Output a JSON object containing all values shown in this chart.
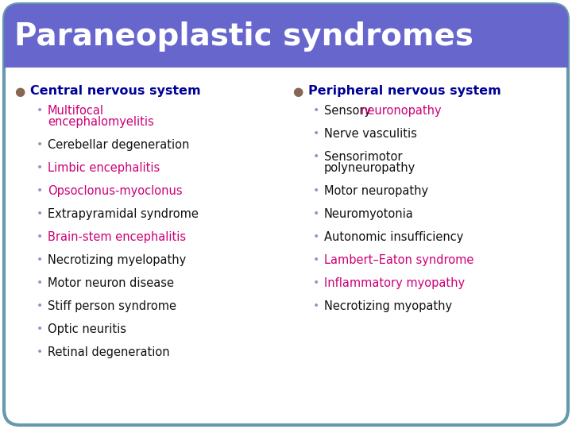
{
  "title": "Paraneoplastic syndromes",
  "title_bg": "#6666cc",
  "title_color": "#ffffff",
  "slide_bg": "#ffffff",
  "border_color": "#6699aa",
  "heading_color": "#000099",
  "bullet_color": "#8899bb",
  "heading_bullet_color": "#886655",
  "black_color": "#111111",
  "pink_color": "#cc0077",
  "left_heading": "Central nervous system",
  "left_items": [
    {
      "text": "Multifocal\nencephalomyelitis",
      "color": "pink"
    },
    {
      "text": "Cerebellar degeneration",
      "color": "black"
    },
    {
      "text": "Limbic encephalitis",
      "color": "pink"
    },
    {
      "text": "Opsoclonus-myoclonus",
      "color": "pink"
    },
    {
      "text": "Extrapyramidal syndrome",
      "color": "black"
    },
    {
      "text": "Brain-stem encephalitis",
      "color": "pink"
    },
    {
      "text": "Necrotizing myelopathy",
      "color": "black"
    },
    {
      "text": "Motor neuron disease",
      "color": "black"
    },
    {
      "text": "Stiff person syndrome",
      "color": "black"
    },
    {
      "text": "Optic neuritis",
      "color": "black"
    },
    {
      "text": "Retinal degeneration",
      "color": "black"
    }
  ],
  "right_heading": "Peripheral nervous system",
  "right_items": [
    {
      "text": "Sensory neuronopathy",
      "color": "mixed_sensory"
    },
    {
      "text": "Nerve vasculitis",
      "color": "black"
    },
    {
      "text": "Sensorimotor\npolyneuropathy",
      "color": "black"
    },
    {
      "text": "Motor neuropathy",
      "color": "black"
    },
    {
      "text": "Neuromyotonia",
      "color": "black"
    },
    {
      "text": "Autonomic insufficiency",
      "color": "black"
    },
    {
      "text": "Lambert–Eaton syndrome",
      "color": "pink"
    },
    {
      "text": "Inflammatory myopathy",
      "color": "pink"
    },
    {
      "text": "Necrotizing myopathy",
      "color": "black"
    }
  ]
}
